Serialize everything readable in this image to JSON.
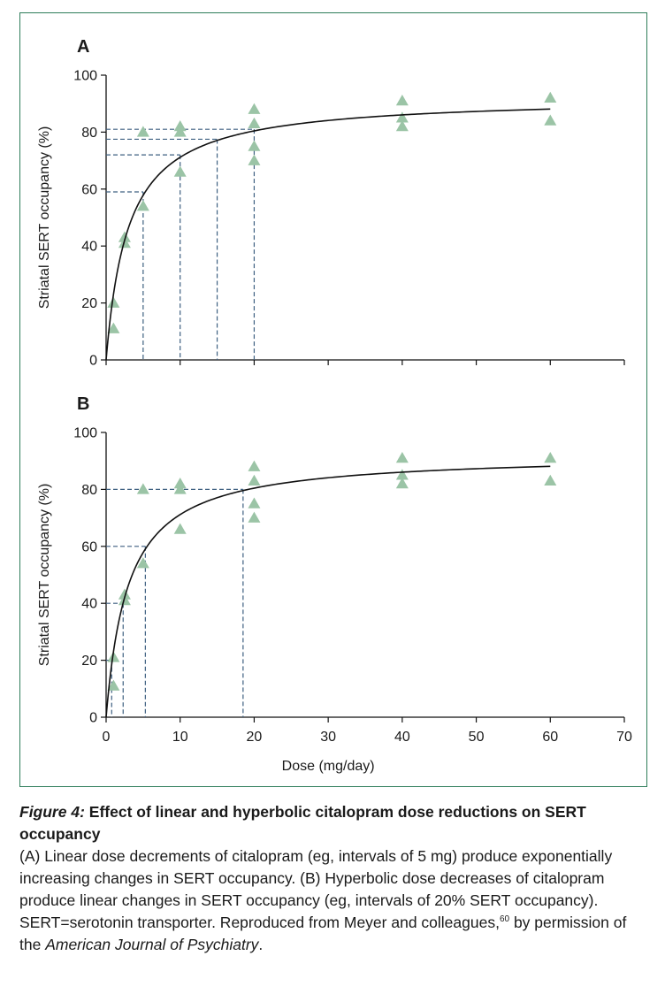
{
  "colors": {
    "frame": "#2e7d5a",
    "marker": "#9bc4a6",
    "guide": "#3d5f80",
    "curve": "#111111"
  },
  "chart_data": [
    {
      "panel_label": "A",
      "type": "scatter",
      "ylabel": "Striatal SERT occupancy (%)",
      "xlim": [
        0,
        70
      ],
      "ylim": [
        0,
        100
      ],
      "yticks": [
        0,
        20,
        40,
        60,
        80,
        100
      ],
      "points": [
        {
          "x": 1,
          "y": 20
        },
        {
          "x": 1,
          "y": 11
        },
        {
          "x": 2.5,
          "y": 43
        },
        {
          "x": 2.5,
          "y": 41
        },
        {
          "x": 5,
          "y": 80
        },
        {
          "x": 5,
          "y": 54
        },
        {
          "x": 10,
          "y": 82
        },
        {
          "x": 10,
          "y": 80
        },
        {
          "x": 10,
          "y": 66
        },
        {
          "x": 20,
          "y": 88
        },
        {
          "x": 20,
          "y": 83
        },
        {
          "x": 20,
          "y": 75
        },
        {
          "x": 20,
          "y": 70
        },
        {
          "x": 40,
          "y": 91
        },
        {
          "x": 40,
          "y": 85
        },
        {
          "x": 40,
          "y": 82
        },
        {
          "x": 60,
          "y": 92
        },
        {
          "x": 60,
          "y": 84
        }
      ],
      "curve": {
        "model": "hyperbolic",
        "emax": 92.5,
        "ed50": 3.0,
        "x_range": [
          0,
          60
        ]
      },
      "guides": [
        {
          "x": 5,
          "y": 59
        },
        {
          "x": 10,
          "y": 72
        },
        {
          "x": 15,
          "y": 77.5
        },
        {
          "x": 20,
          "y": 81
        }
      ]
    },
    {
      "panel_label": "B",
      "type": "scatter",
      "ylabel": "Striatal SERT occupancy (%)",
      "xlabel": "Dose (mg/day)",
      "xlim": [
        0,
        70
      ],
      "ylim": [
        0,
        100
      ],
      "xticks": [
        0,
        10,
        20,
        30,
        40,
        50,
        60,
        70
      ],
      "yticks": [
        0,
        20,
        40,
        60,
        80,
        100
      ],
      "points": [
        {
          "x": 1,
          "y": 21
        },
        {
          "x": 1,
          "y": 11
        },
        {
          "x": 2.5,
          "y": 43
        },
        {
          "x": 2.5,
          "y": 41
        },
        {
          "x": 5,
          "y": 80
        },
        {
          "x": 5,
          "y": 54
        },
        {
          "x": 10,
          "y": 82
        },
        {
          "x": 10,
          "y": 80
        },
        {
          "x": 10,
          "y": 66
        },
        {
          "x": 20,
          "y": 88
        },
        {
          "x": 20,
          "y": 83
        },
        {
          "x": 20,
          "y": 75
        },
        {
          "x": 20,
          "y": 70
        },
        {
          "x": 40,
          "y": 91
        },
        {
          "x": 40,
          "y": 85
        },
        {
          "x": 40,
          "y": 82
        },
        {
          "x": 60,
          "y": 91
        },
        {
          "x": 60,
          "y": 83
        }
      ],
      "curve": {
        "model": "hyperbolic",
        "emax": 92.5,
        "ed50": 3.0,
        "x_range": [
          0,
          60
        ]
      },
      "guides": [
        {
          "x": 0.75,
          "y": 20
        },
        {
          "x": 2.3,
          "y": 40
        },
        {
          "x": 5.3,
          "y": 60
        },
        {
          "x": 18.5,
          "y": 80
        }
      ]
    }
  ],
  "caption": {
    "figure_label": "Figure 4:",
    "title": "Effect of linear and hyperbolic citalopram dose reductions on SERT occupancy",
    "body_1": "(A) Linear dose decrements of citalopram (eg, intervals of 5 mg) produce exponentially increasing changes in SERT occupancy. (B) Hyperbolic dose decreases of citalopram produce linear changes in SERT occupancy (eg, intervals of 20% SERT occupancy). SERT=serotonin transporter. Reproduced from Meyer and colleagues,",
    "ref": "60",
    "body_2": " by permission of the ",
    "journal": "American Journal of Psychiatry",
    "body_3": "."
  }
}
